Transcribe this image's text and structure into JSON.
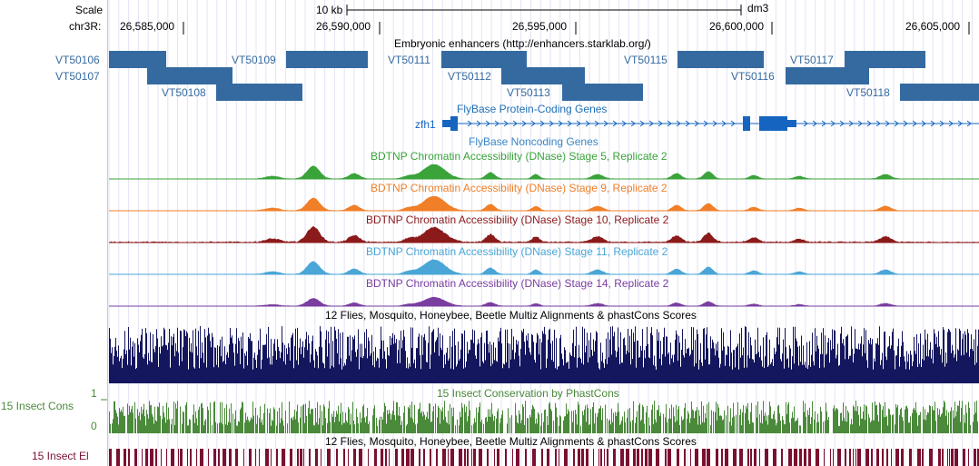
{
  "ruler": {
    "scale_label": "Scale",
    "chrom_label": "chr3R:",
    "scale_bar_text": "10 kb",
    "assembly": "dm3",
    "positions": [
      "26,585,000",
      "26,590,000",
      "26,595,000",
      "26,600,000",
      "26,605,000"
    ]
  },
  "tracks": {
    "enhancers": {
      "title": "Embryonic enhancers (http://enhancers.starklab.org/)",
      "items": [
        "VT50106",
        "VT50107",
        "VT50108",
        "VT50109",
        "VT50111",
        "VT50112",
        "VT50113",
        "VT50115",
        "VT50116",
        "VT50117",
        "VT50118"
      ]
    },
    "protein_genes": {
      "title": "FlyBase Protein-Coding Genes",
      "gene": "zfh1"
    },
    "noncoding_genes": {
      "title": "FlyBase Noncoding Genes"
    },
    "dnase": [
      {
        "title": "BDTNP Chromatin Accessibility (DNase) Stage 5, Replicate 2",
        "color": "#3aa33a"
      },
      {
        "title": "BDTNP Chromatin Accessibility (DNase) Stage 9, Replicate 2",
        "color": "#f07f28"
      },
      {
        "title": "BDTNP Chromatin Accessibility (DNase) Stage 10, Replicate 2",
        "color": "#8b1a1a"
      },
      {
        "title": "BDTNP Chromatin Accessibility (DNase) Stage 11, Replicate 2",
        "color": "#4aa6d6"
      },
      {
        "title": "BDTNP Chromatin Accessibility (DNase) Stage 14, Replicate 2",
        "color": "#7a3ea0"
      }
    ],
    "multiz": {
      "title": "12 Flies, Mosquito, Honeybee, Beetle Multiz Alignments & phastCons Scores",
      "color": "#14165e"
    },
    "insect_cons": {
      "title": "15 Insect Conservation by PhastCons",
      "side_label": "15 Insect Cons",
      "ymax": "1",
      "ymin": "0",
      "color": "#4a8a3a"
    },
    "insect_el": {
      "title": "12 Flies, Mosquito, Honeybee, Beetle Multiz Alignments & phastCons Scores",
      "side_label": "15 Insect El",
      "color": "#7a1030"
    }
  }
}
